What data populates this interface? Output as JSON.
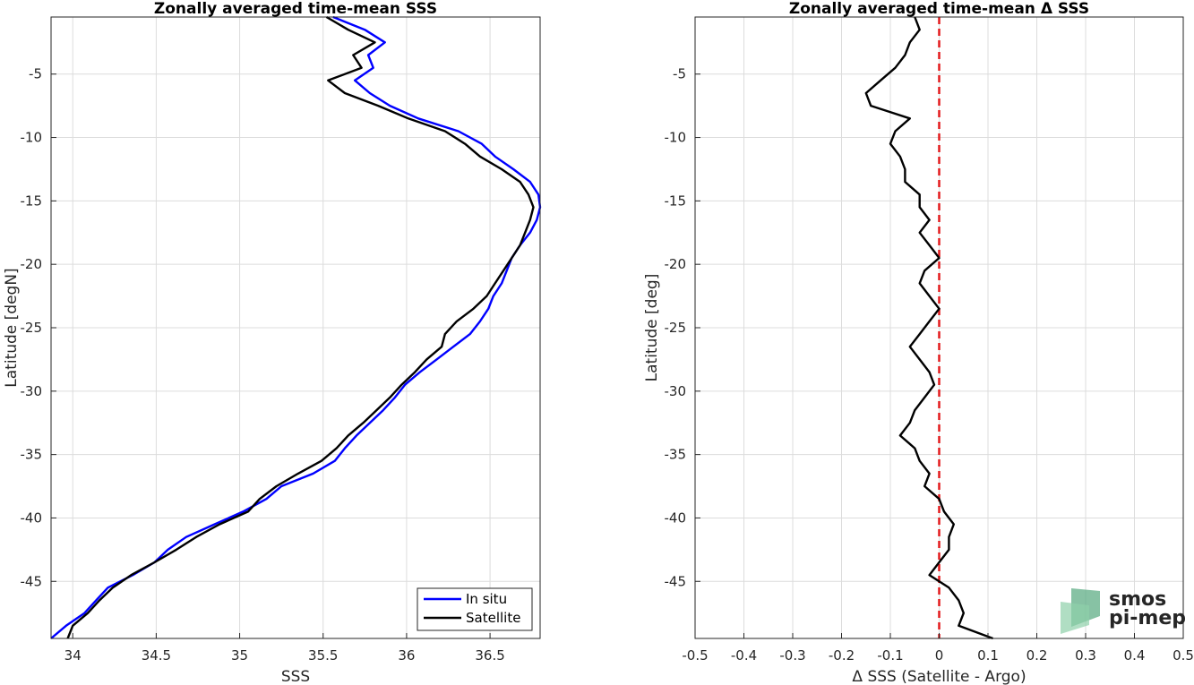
{
  "colors": {
    "insitu": "#0000ff",
    "satellite": "#000000",
    "zero_line": "#e41a1c",
    "grid": "#dcdcdc",
    "logo_green": "#3e9e6c"
  },
  "logo": {
    "line1": "smos",
    "line2": "pi-mep"
  },
  "chart_data": [
    {
      "type": "line",
      "title": "Zonally averaged time-mean SSS",
      "xlabel": "SSS",
      "ylabel": "Latitude [degN]",
      "xlim": [
        33.87,
        36.8
      ],
      "ylim": [
        -49.5,
        -0.5
      ],
      "xticks": [
        34,
        34.5,
        35,
        35.5,
        36,
        36.5
      ],
      "xtick_labels": [
        "34",
        "34.5",
        "35",
        "35.5",
        "36",
        "36.5"
      ],
      "yticks": [
        -5,
        -10,
        -15,
        -20,
        -25,
        -30,
        -35,
        -40,
        -45
      ],
      "ytick_labels": [
        "-5",
        "-10",
        "-15",
        "-20",
        "-25",
        "-30",
        "-35",
        "-40",
        "-45"
      ],
      "grid": true,
      "legend_position": "bottom-right",
      "series": [
        {
          "name": "In situ",
          "color": "#0000ff",
          "points": [
            [
              35.56,
              -0.5
            ],
            [
              35.75,
              -1.5
            ],
            [
              35.87,
              -2.5
            ],
            [
              35.77,
              -3.5
            ],
            [
              35.8,
              -4.5
            ],
            [
              35.69,
              -5.5
            ],
            [
              35.78,
              -6.5
            ],
            [
              35.9,
              -7.5
            ],
            [
              36.07,
              -8.5
            ],
            [
              36.31,
              -9.5
            ],
            [
              36.45,
              -10.5
            ],
            [
              36.53,
              -11.5
            ],
            [
              36.64,
              -12.5
            ],
            [
              36.74,
              -13.5
            ],
            [
              36.79,
              -14.5
            ],
            [
              36.8,
              -15.5
            ],
            [
              36.78,
              -16.5
            ],
            [
              36.74,
              -17.5
            ],
            [
              36.68,
              -18.5
            ],
            [
              36.63,
              -19.5
            ],
            [
              36.6,
              -20.5
            ],
            [
              36.57,
              -21.5
            ],
            [
              36.52,
              -22.5
            ],
            [
              36.49,
              -23.5
            ],
            [
              36.44,
              -24.5
            ],
            [
              36.38,
              -25.5
            ],
            [
              36.28,
              -26.5
            ],
            [
              36.18,
              -27.5
            ],
            [
              36.08,
              -28.5
            ],
            [
              35.99,
              -29.5
            ],
            [
              35.93,
              -30.5
            ],
            [
              35.86,
              -31.5
            ],
            [
              35.78,
              -32.5
            ],
            [
              35.7,
              -33.5
            ],
            [
              35.63,
              -34.5
            ],
            [
              35.57,
              -35.5
            ],
            [
              35.44,
              -36.5
            ],
            [
              35.25,
              -37.5
            ],
            [
              35.16,
              -38.5
            ],
            [
              35.02,
              -39.5
            ],
            [
              34.85,
              -40.5
            ],
            [
              34.68,
              -41.5
            ],
            [
              34.57,
              -42.5
            ],
            [
              34.49,
              -43.5
            ],
            [
              34.36,
              -44.5
            ],
            [
              34.21,
              -45.5
            ],
            [
              34.14,
              -46.5
            ],
            [
              34.07,
              -47.5
            ],
            [
              33.96,
              -48.5
            ],
            [
              33.87,
              -49.5
            ]
          ]
        },
        {
          "name": "Satellite",
          "color": "#000000",
          "points": [
            [
              35.52,
              -0.5
            ],
            [
              35.65,
              -1.5
            ],
            [
              35.81,
              -2.5
            ],
            [
              35.68,
              -3.5
            ],
            [
              35.73,
              -4.5
            ],
            [
              35.53,
              -5.5
            ],
            [
              35.63,
              -6.5
            ],
            [
              35.83,
              -7.5
            ],
            [
              36.01,
              -8.5
            ],
            [
              36.23,
              -9.5
            ],
            [
              36.35,
              -10.5
            ],
            [
              36.44,
              -11.5
            ],
            [
              36.57,
              -12.5
            ],
            [
              36.68,
              -13.5
            ],
            [
              36.73,
              -14.5
            ],
            [
              36.76,
              -15.5
            ],
            [
              36.74,
              -16.5
            ],
            [
              36.71,
              -17.5
            ],
            [
              36.68,
              -18.5
            ],
            [
              36.63,
              -19.5
            ],
            [
              36.58,
              -20.5
            ],
            [
              36.53,
              -21.5
            ],
            [
              36.48,
              -22.5
            ],
            [
              36.4,
              -23.5
            ],
            [
              36.3,
              -24.5
            ],
            [
              36.23,
              -25.5
            ],
            [
              36.21,
              -26.5
            ],
            [
              36.12,
              -27.5
            ],
            [
              36.05,
              -28.5
            ],
            [
              35.97,
              -29.5
            ],
            [
              35.9,
              -30.5
            ],
            [
              35.82,
              -31.5
            ],
            [
              35.74,
              -32.5
            ],
            [
              35.65,
              -33.5
            ],
            [
              35.58,
              -34.5
            ],
            [
              35.49,
              -35.5
            ],
            [
              35.35,
              -36.5
            ],
            [
              35.22,
              -37.5
            ],
            [
              35.12,
              -38.5
            ],
            [
              35.05,
              -39.5
            ],
            [
              34.88,
              -40.5
            ],
            [
              34.74,
              -41.5
            ],
            [
              34.62,
              -42.5
            ],
            [
              34.49,
              -43.5
            ],
            [
              34.35,
              -44.5
            ],
            [
              34.24,
              -45.5
            ],
            [
              34.16,
              -46.5
            ],
            [
              34.09,
              -47.5
            ],
            [
              34.0,
              -48.5
            ],
            [
              33.97,
              -49.5
            ]
          ]
        }
      ]
    },
    {
      "type": "line",
      "title": "Zonally averaged time-mean Δ SSS",
      "xlabel": "Δ SSS (Satellite - Argo)",
      "ylabel": "Latitude [deg]",
      "xlim": [
        -0.5,
        0.5
      ],
      "ylim": [
        -49.5,
        -0.5
      ],
      "xticks": [
        -0.5,
        -0.4,
        -0.3,
        -0.2,
        -0.1,
        0,
        0.1,
        0.2,
        0.3,
        0.4,
        0.5
      ],
      "xtick_labels": [
        "-0.5",
        "-0.4",
        "-0.3",
        "-0.2",
        "-0.1",
        "0",
        "0.1",
        "0.2",
        "0.3",
        "0.4",
        "0.5"
      ],
      "yticks": [
        -5,
        -10,
        -15,
        -20,
        -25,
        -30,
        -35,
        -40,
        -45
      ],
      "ytick_labels": [
        "-5",
        "-10",
        "-15",
        "-20",
        "-25",
        "-30",
        "-35",
        "-40",
        "-45"
      ],
      "grid": true,
      "zero_line": 0,
      "series": [
        {
          "color": "#000000",
          "points": [
            [
              -0.05,
              -0.5
            ],
            [
              -0.04,
              -1.5
            ],
            [
              -0.06,
              -2.5
            ],
            [
              -0.07,
              -3.5
            ],
            [
              -0.09,
              -4.5
            ],
            [
              -0.12,
              -5.5
            ],
            [
              -0.15,
              -6.5
            ],
            [
              -0.14,
              -7.5
            ],
            [
              -0.06,
              -8.5
            ],
            [
              -0.09,
              -9.5
            ],
            [
              -0.1,
              -10.5
            ],
            [
              -0.08,
              -11.5
            ],
            [
              -0.07,
              -12.5
            ],
            [
              -0.07,
              -13.5
            ],
            [
              -0.04,
              -14.5
            ],
            [
              -0.04,
              -15.5
            ],
            [
              -0.02,
              -16.5
            ],
            [
              -0.04,
              -17.5
            ],
            [
              -0.02,
              -18.5
            ],
            [
              0.0,
              -19.5
            ],
            [
              -0.03,
              -20.5
            ],
            [
              -0.04,
              -21.5
            ],
            [
              -0.02,
              -22.5
            ],
            [
              0.0,
              -23.5
            ],
            [
              -0.02,
              -24.5
            ],
            [
              -0.04,
              -25.5
            ],
            [
              -0.06,
              -26.5
            ],
            [
              -0.04,
              -27.5
            ],
            [
              -0.02,
              -28.5
            ],
            [
              -0.01,
              -29.5
            ],
            [
              -0.03,
              -30.5
            ],
            [
              -0.05,
              -31.5
            ],
            [
              -0.06,
              -32.5
            ],
            [
              -0.08,
              -33.5
            ],
            [
              -0.05,
              -34.5
            ],
            [
              -0.04,
              -35.5
            ],
            [
              -0.02,
              -36.5
            ],
            [
              -0.03,
              -37.5
            ],
            [
              0.0,
              -38.5
            ],
            [
              0.01,
              -39.5
            ],
            [
              0.03,
              -40.5
            ],
            [
              0.02,
              -41.5
            ],
            [
              0.02,
              -42.5
            ],
            [
              0.0,
              -43.5
            ],
            [
              -0.02,
              -44.5
            ],
            [
              0.02,
              -45.5
            ],
            [
              0.04,
              -46.5
            ],
            [
              0.05,
              -47.5
            ],
            [
              0.04,
              -48.5
            ],
            [
              0.11,
              -49.5
            ]
          ]
        }
      ]
    }
  ]
}
